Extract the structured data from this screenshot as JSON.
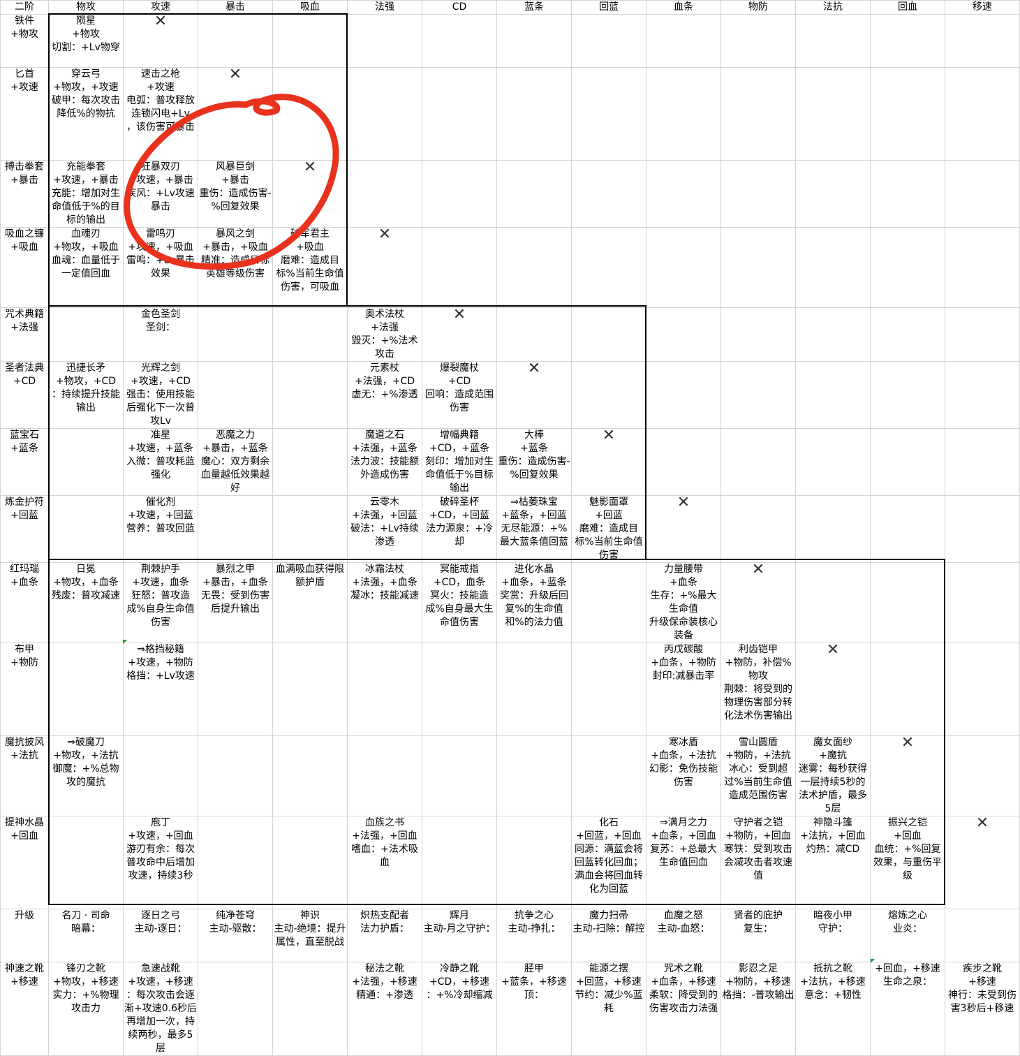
{
  "columns": [
    "二阶",
    "物攻",
    "攻速",
    "暴击",
    "吸血",
    "法强",
    "CD",
    "蓝条",
    "回蓝",
    "血条",
    "物防",
    "法抗",
    "回血",
    "移速"
  ],
  "rows": [
    {
      "head": "铁件\n+物攻",
      "cells": [
        "陨星\n+物攻\n切割：+Lv物穿",
        "X",
        "",
        "",
        "",
        "",
        "",
        "",
        "",
        "",
        "",
        "",
        ""
      ]
    },
    {
      "head": "匕首\n+攻速",
      "cells": [
        "穿云弓\n+物攻，+攻速\n破甲：每次攻击降低%的物抗",
        "速击之枪\n+攻速\n电弧：普攻释放连锁闪电+Lv\n，该伤害可暴击",
        "X",
        "",
        "",
        "",
        "",
        "",
        "",
        "",
        "",
        "",
        ""
      ]
    },
    {
      "head": "搏击拳套\n+暴击",
      "cells": [
        "充能拳套\n+攻速，+暴击\n充能：增加对生命值低于%的目标的输出",
        "狂暴双刃\n+攻速，+暴击\n疾风：+Lv攻速暴击",
        "风暴巨剑\n+暴击\n重伤：造成伤害-%回复效果",
        "X",
        "",
        "",
        "",
        "",
        "",
        "",
        "",
        "",
        ""
      ]
    },
    {
      "head": "吸血之镰\n+吸血",
      "cells": [
        "血魂刃\n+物攻，+吸血\n血魂：血量低于一定值回血",
        "雷鸣刃\n+攻速，+吸血\n雷鸣：+Lv暴击效果",
        "暴风之剑\n+暴击，+吸血\n精准：造成目标英雄等级伤害",
        "破军君主\n+吸血\n磨难：造成目标%当前生命值伤害，可吸血",
        "X",
        "",
        "",
        "",
        "",
        "",
        "",
        "",
        ""
      ]
    },
    {
      "head": "咒术典籍\n+法强",
      "cells": [
        "",
        "金色圣剑\n圣剑：",
        "",
        "",
        "奥术法杖\n+法强\n毁灭：+%法术攻击",
        "X",
        "",
        "",
        "",
        "",
        "",
        "",
        ""
      ]
    },
    {
      "head": "圣者法典\n+CD",
      "cells": [
        "迅捷长矛\n+物攻，+CD\n：持续提升技能输出",
        "光辉之剑\n+攻速，+CD\n强击：使用技能后强化下一次普攻Lv",
        "",
        "",
        "元素杖\n+法强，+CD\n虚无：+%渗透",
        "爆裂魔杖\n+CD\n回响：造成范围伤害",
        "X",
        "",
        "",
        "",
        "",
        "",
        ""
      ]
    },
    {
      "head": "蓝宝石\n+蓝条",
      "cells": [
        "",
        "准星\n+攻速，+蓝条\n入微：普攻耗蓝强化",
        "恶魔之力\n+暴击，+蓝条\n魔心：双方剩余血量越低效果越好",
        "",
        "魔道之石\n+法强，+蓝条\n法力波：技能额外造成伤害",
        "增幅典籍\n+CD，+蓝条\n刻印：增加对生命值低于%目标输出",
        "大棒\n+蓝条\n重伤：造成伤害-%回复效果",
        "X",
        "",
        "",
        "",
        "",
        ""
      ]
    },
    {
      "head": "炼金护符\n+回蓝",
      "cells": [
        "",
        "催化剂\n+攻速，+回蓝\n营养：普攻回蓝",
        "",
        "",
        "云零木\n+法强，+回蓝\n破法：+Lv持续渗透",
        "破碎圣杯\n+CD，+回蓝\n法力源泉：+冷却",
        "⇒枯萎珠宝\n+蓝条，+回蓝\n无尽能源：+%最大蓝条值回蓝",
        "魅影面罩\n+回蓝\n磨难：造成目标%当前生命值伤害",
        "X",
        "",
        "",
        "",
        ""
      ]
    },
    {
      "head": "红玛瑙\n+血条",
      "cells": [
        "日冕\n+物攻，+血条\n残废：普攻减速",
        "荆棘护手\n+攻速，血条\n狂怒：普攻造成%自身生命值伤害",
        "暴烈之甲\n+暴击，+血条\n无畏：受到伤害后提升输出",
        "血满吸血获得限额护盾",
        "冰霜法杖\n+法强，+血条\n凝冰：技能减速",
        "冥能戒指\n+CD，血条\n冥火：技能造成%自身最大生命值伤害",
        "进化水晶\n+血条，+蓝条\n奖赏：升级后回复%的生命值和%的法力值",
        "",
        "力量腰带\n+血条\n生存：+%最大生命值\n升级保命装核心装备",
        "X",
        "",
        "",
        ""
      ]
    },
    {
      "head": "布甲\n+物防",
      "cells": [
        "",
        "⇒格挡秘籍\n+攻速，+物防\n格挡：+Lv攻速",
        "",
        "",
        "",
        "",
        "",
        "",
        "丙戊碳酸\n+血条，+物防\n封印:减暴击率",
        "利齿铠甲\n+物防，补偿%物攻\n荆棘：将受到的物理伤害部分转化法术伤害输出",
        "X",
        "",
        ""
      ]
    },
    {
      "head": "魔抗披风\n+法抗",
      "cells": [
        "⇒破魔刀\n+物攻，+法抗\n御魔：+%总物攻的魔抗",
        "",
        "",
        "",
        "",
        "",
        "",
        "",
        "寒冰盾\n+血条，+法抗\n幻影：免伤技能伤害",
        "雪山圆盾\n+物防，+法抗\n冰心：受到超过%当前生命值造成范围伤害",
        "魔女面纱\n+魔抗\n迷雾：每秒获得一层持续5秒的法术护盾，最多5层",
        "X",
        ""
      ]
    },
    {
      "head": "提神水晶\n+回血",
      "cells": [
        "",
        "庖丁\n+攻速，+回血\n游刃有余：每次普攻命中后增加攻速，持续3秒",
        "",
        "",
        "血族之书\n+法强，+回血\n嗜血：+法术吸血",
        "",
        "",
        "化石\n+回蓝，+回血\n同源：满蓝会将回蓝转化回血；满血会将回血转化为回蓝",
        "⇒满月之力\n+血条，+回血\n复苏：+总最大生命值回血",
        "守护者之铠\n+物防，+回血\n寒铁：受到攻击会减攻击者攻速值",
        "神隐斗篷\n+法抗，+回血\n灼热：减CD",
        "振兴之铠\n+回血\n血统：+%回复效果，与重伤平级",
        "X"
      ]
    },
    {
      "head": "升级",
      "cells": [
        "名刀 · 司命\n暗幕：",
        "逐日之弓\n主动-逐日：",
        "纯净苍穹\n主动-驱散：",
        "神识\n主动-绝境：提升属性，直至脱战",
        "炽热支配者\n法力护盾：",
        "辉月\n主动-月之守护：",
        "抗争之心\n主动-挣扎：",
        "魔力扫帚\n主动-扫除：解控",
        "血魔之怒\n主动-血怒：",
        "贤者的庇护\n复生：",
        "暗夜小甲\n守护：",
        "熔炼之心\n业炎：",
        ""
      ]
    },
    {
      "head": "神速之靴\n+移速",
      "cells": [
        "锋刃之靴\n+物攻，+移速\n实力：+%物理攻击力",
        "急速战靴\n+攻速，+移速\n：每次攻击会逐渐+攻速0.6秒后再增加一次，持续两秒，最多5层",
        "",
        "",
        "秘法之靴\n+法强，+移速\n精通：+渗透",
        "冷静之靴\n+CD，+移速\n：+%冷却缩减",
        "胫甲\n+蓝条，+移速\n顶：",
        "能源之摆\n+回蓝，+移速\n节约：减少%蓝耗",
        "咒术之靴\n+血条，+移速\n柔软：降受到的伤害攻击力法强",
        "影忍之足\n+物防，+移速\n格挡：-普攻输出",
        "抵抗之靴\n+法抗，+移速\n意念：+韧性",
        "+回血，+移速\n生命之泉：",
        "疾步之靴\n+移速\n神行：未受到伤害3秒后+移速"
      ]
    }
  ],
  "annotation": {
    "color": "#e8321e",
    "shape": "hand-drawn circle"
  }
}
